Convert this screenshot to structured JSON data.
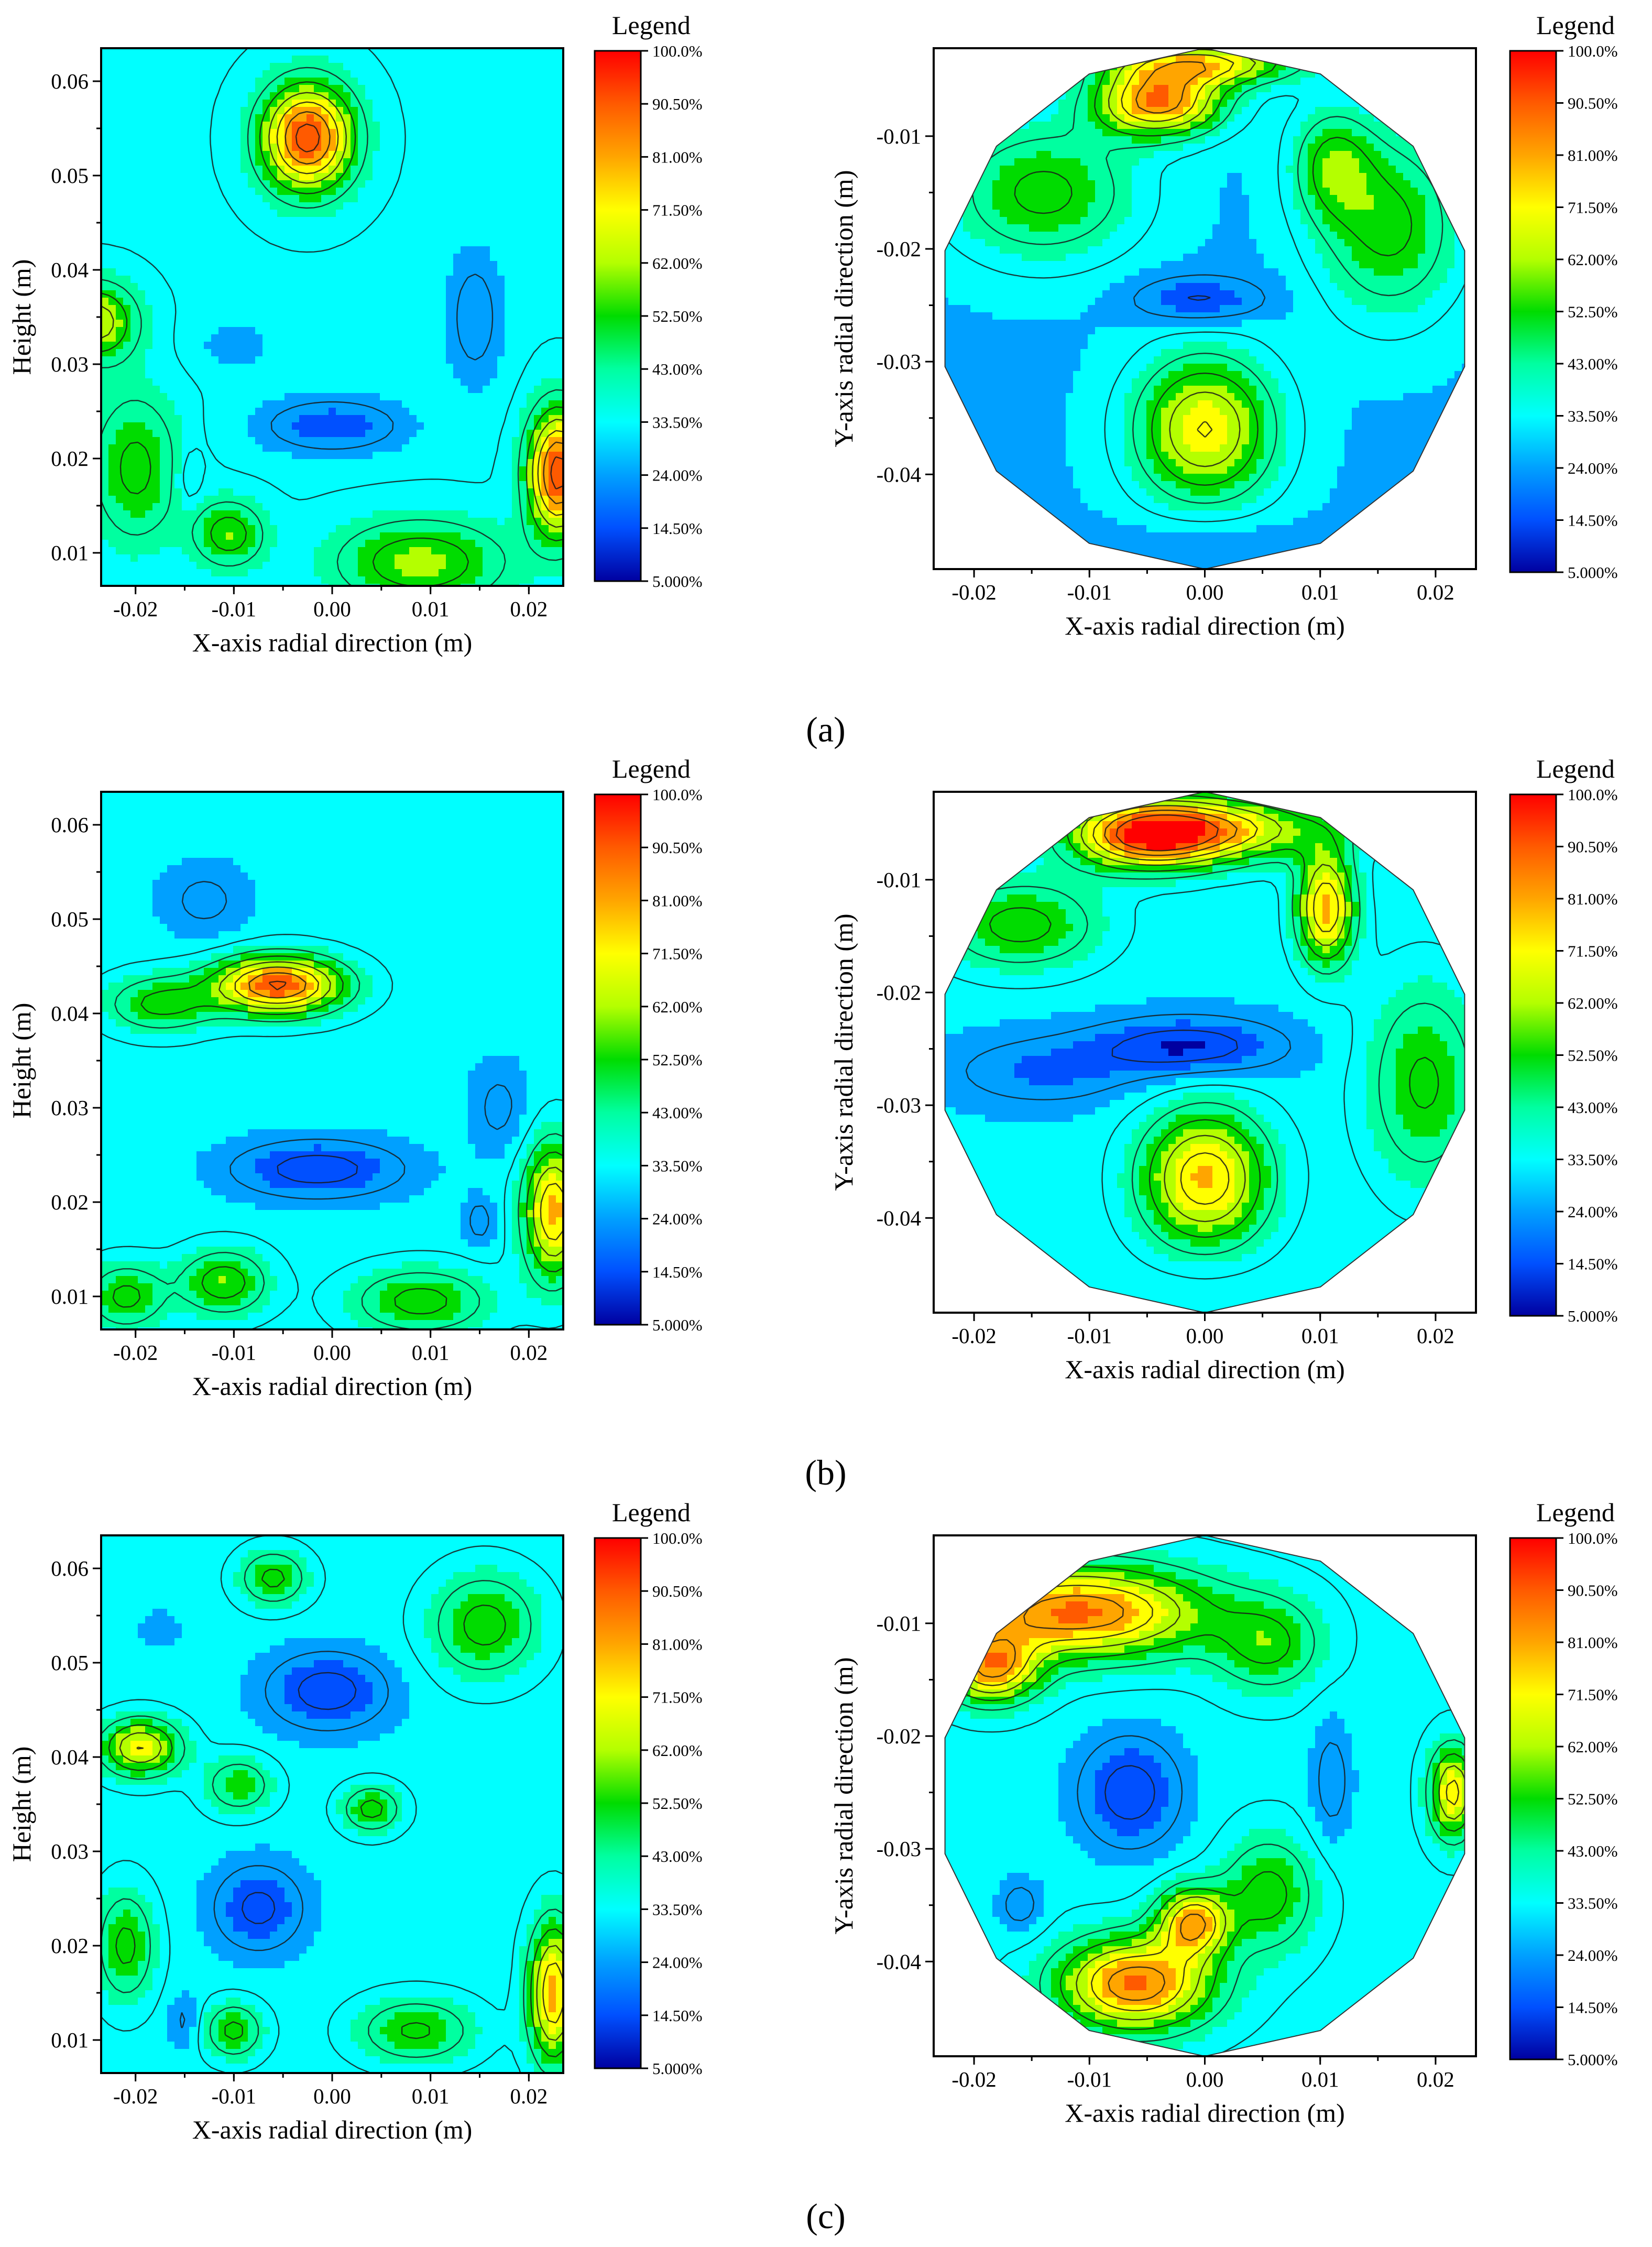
{
  "chart_data": [
    {
      "type": "heatmap",
      "id": "a-left",
      "title": "",
      "xlabel": "X-axis radial direction (m)",
      "ylabel": "Height (m)",
      "xlim": [
        -0.0235,
        0.0235
      ],
      "ylim": [
        0.0065,
        0.0635
      ],
      "xticks": [
        "-0.02",
        "-0.01",
        "0.00",
        "0.01",
        "0.02"
      ],
      "xtick_values": [
        -0.02,
        -0.01,
        0,
        0.01,
        0.02
      ],
      "yticks": [
        "0.01",
        "0.02",
        "0.03",
        "0.04",
        "0.05",
        "0.06"
      ],
      "ytick_values": [
        0.01,
        0.02,
        0.03,
        0.04,
        0.05,
        0.06
      ],
      "shape": "rect",
      "base": 33,
      "blobs": [
        {
          "x": -0.0025,
          "y": 0.054,
          "value": 95,
          "rx": 0.0045,
          "ry": 0.0055
        },
        {
          "x": -0.024,
          "y": 0.0345,
          "value": 68,
          "rx": 0.004,
          "ry": 0.004
        },
        {
          "x": 0.023,
          "y": 0.0185,
          "value": 95,
          "rx": 0.003,
          "ry": 0.0065
        },
        {
          "x": -0.02,
          "y": 0.019,
          "value": 55,
          "rx": 0.0045,
          "ry": 0.008
        },
        {
          "x": 0.009,
          "y": 0.009,
          "value": 60,
          "rx": 0.0085,
          "ry": 0.0045
        },
        {
          "x": -0.0105,
          "y": 0.012,
          "value": 58,
          "rx": 0.0035,
          "ry": 0.0035
        },
        {
          "x": 0.0,
          "y": 0.0235,
          "value": 15,
          "rx": 0.0075,
          "ry": 0.003
        },
        {
          "x": 0.0145,
          "y": 0.035,
          "value": 20,
          "rx": 0.003,
          "ry": 0.0075
        },
        {
          "x": -0.0145,
          "y": 0.018,
          "value": 24,
          "rx": 0.0012,
          "ry": 0.003
        },
        {
          "x": -0.01,
          "y": 0.032,
          "value": 26,
          "rx": 0.004,
          "ry": 0.003
        }
      ]
    },
    {
      "type": "heatmap",
      "id": "a-right",
      "title": "",
      "xlabel": "X-axis radial direction (m)",
      "ylabel": "Y-axis radial direction (m)",
      "xlim": [
        -0.0235,
        0.0235
      ],
      "ylim": [
        -0.0484,
        -0.0022
      ],
      "xticks": [
        "-0.02",
        "-0.01",
        "0.00",
        "0.01",
        "0.02"
      ],
      "xtick_values": [
        -0.02,
        -0.01,
        0,
        0.01,
        0.02
      ],
      "yticks": [
        "-0.01",
        "-0.02",
        "-0.03",
        "-0.04"
      ],
      "ytick_values": [
        -0.01,
        -0.02,
        -0.03,
        -0.04
      ],
      "shape": "circle",
      "center": [
        0,
        -0.0253
      ],
      "radius": 0.0231,
      "base": 28,
      "blobs": [
        {
          "x": -0.004,
          "y": -0.007,
          "value": 85,
          "rx": 0.0055,
          "ry": 0.003
        },
        {
          "x": 0.0,
          "y": -0.0035,
          "value": 72,
          "rx": 0.008,
          "ry": 0.002
        },
        {
          "x": 0.011,
          "y": -0.0125,
          "value": 52,
          "rx": 0.0035,
          "ry": 0.005
        },
        {
          "x": -0.014,
          "y": -0.015,
          "value": 55,
          "rx": 0.008,
          "ry": 0.006
        },
        {
          "x": 0.016,
          "y": -0.018,
          "value": 55,
          "rx": 0.006,
          "ry": 0.008
        },
        {
          "x": 0.0,
          "y": -0.036,
          "value": 72,
          "rx": 0.006,
          "ry": 0.0065
        },
        {
          "x": -0.0005,
          "y": -0.0245,
          "value": 12,
          "rx": 0.0055,
          "ry": 0.002
        },
        {
          "x": 0.0,
          "y": -0.046,
          "value": 22,
          "rx": 0.007,
          "ry": 0.0025
        }
      ]
    },
    {
      "type": "heatmap",
      "id": "b-left",
      "title": "",
      "xlabel": "X-axis radial direction (m)",
      "ylabel": "Height (m)",
      "xlim": [
        -0.0235,
        0.0235
      ],
      "ylim": [
        0.0065,
        0.0635
      ],
      "xticks": [
        "-0.02",
        "-0.01",
        "0.00",
        "0.01",
        "0.02"
      ],
      "xtick_values": [
        -0.02,
        -0.01,
        0,
        0.01,
        0.02
      ],
      "yticks": [
        "0.01",
        "0.02",
        "0.03",
        "0.04",
        "0.05",
        "0.06"
      ],
      "ytick_values": [
        0.01,
        0.02,
        0.03,
        0.04,
        0.05,
        0.06
      ],
      "shape": "rect",
      "base": 31,
      "blobs": [
        {
          "x": -0.0055,
          "y": 0.043,
          "value": 92,
          "rx": 0.0065,
          "ry": 0.003
        },
        {
          "x": -0.0175,
          "y": 0.041,
          "value": 55,
          "rx": 0.0055,
          "ry": 0.003
        },
        {
          "x": 0.0225,
          "y": 0.019,
          "value": 80,
          "rx": 0.003,
          "ry": 0.007
        },
        {
          "x": -0.011,
          "y": 0.0115,
          "value": 58,
          "rx": 0.0045,
          "ry": 0.0035
        },
        {
          "x": 0.009,
          "y": 0.0095,
          "value": 56,
          "rx": 0.007,
          "ry": 0.0035
        },
        {
          "x": -0.021,
          "y": 0.01,
          "value": 55,
          "rx": 0.004,
          "ry": 0.0035
        },
        {
          "x": -0.0015,
          "y": 0.0235,
          "value": 10,
          "rx": 0.0085,
          "ry": 0.003
        },
        {
          "x": -0.013,
          "y": 0.052,
          "value": 22,
          "rx": 0.0045,
          "ry": 0.004
        },
        {
          "x": 0.017,
          "y": 0.03,
          "value": 22,
          "rx": 0.003,
          "ry": 0.005
        },
        {
          "x": 0.015,
          "y": 0.018,
          "value": 20,
          "rx": 0.0015,
          "ry": 0.0025
        }
      ]
    },
    {
      "type": "heatmap",
      "id": "b-right",
      "title": "",
      "xlabel": "X-axis radial direction (m)",
      "ylabel": "Y-axis radial direction (m)",
      "xlim": [
        -0.0235,
        0.0235
      ],
      "ylim": [
        -0.0484,
        -0.0022
      ],
      "xticks": [
        "-0.02",
        "-0.01",
        "0.00",
        "0.01",
        "0.02"
      ],
      "xtick_values": [
        -0.02,
        -0.01,
        0,
        0.01,
        0.02
      ],
      "yticks": [
        "-0.01",
        "-0.02",
        "-0.03",
        "-0.04"
      ],
      "ytick_values": [
        -0.01,
        -0.02,
        -0.03,
        -0.04
      ],
      "shape": "circle",
      "center": [
        0,
        -0.0253
      ],
      "radius": 0.0231,
      "base": 30,
      "blobs": [
        {
          "x": -0.005,
          "y": -0.006,
          "value": 88,
          "rx": 0.0065,
          "ry": 0.003
        },
        {
          "x": 0.0105,
          "y": -0.0125,
          "value": 80,
          "rx": 0.0025,
          "ry": 0.005
        },
        {
          "x": 0.002,
          "y": -0.0055,
          "value": 68,
          "rx": 0.009,
          "ry": 0.0028
        },
        {
          "x": -0.016,
          "y": -0.014,
          "value": 56,
          "rx": 0.007,
          "ry": 0.004
        },
        {
          "x": 0.0,
          "y": -0.0365,
          "value": 78,
          "rx": 0.0055,
          "ry": 0.006
        },
        {
          "x": 0.019,
          "y": -0.028,
          "value": 54,
          "rx": 0.005,
          "ry": 0.009
        },
        {
          "x": -0.0015,
          "y": -0.0248,
          "value": 8,
          "rx": 0.008,
          "ry": 0.0025
        },
        {
          "x": -0.014,
          "y": -0.027,
          "value": 18,
          "rx": 0.008,
          "ry": 0.003
        },
        {
          "x": 0.0,
          "y": -0.046,
          "value": 28,
          "rx": 0.007,
          "ry": 0.0025
        }
      ]
    },
    {
      "type": "heatmap",
      "id": "c-left",
      "title": "",
      "xlabel": "X-axis radial direction (m)",
      "ylabel": "Height (m)",
      "xlim": [
        -0.0235,
        0.0235
      ],
      "ylim": [
        0.0065,
        0.0635
      ],
      "xticks": [
        "-0.02",
        "-0.01",
        "0.00",
        "0.01",
        "0.02"
      ],
      "xtick_values": [
        -0.02,
        -0.01,
        0,
        0.01,
        0.02
      ],
      "yticks": [
        "0.01",
        "0.02",
        "0.03",
        "0.04",
        "0.05",
        "0.06"
      ],
      "ytick_values": [
        0.01,
        0.02,
        0.03,
        0.04,
        0.05,
        0.06
      ],
      "shape": "rect",
      "base": 31,
      "blobs": [
        {
          "x": -0.0195,
          "y": 0.041,
          "value": 72,
          "rx": 0.004,
          "ry": 0.003
        },
        {
          "x": 0.0225,
          "y": 0.015,
          "value": 80,
          "rx": 0.0025,
          "ry": 0.0075
        },
        {
          "x": -0.006,
          "y": 0.059,
          "value": 55,
          "rx": 0.0035,
          "ry": 0.003
        },
        {
          "x": 0.0155,
          "y": 0.054,
          "value": 56,
          "rx": 0.0055,
          "ry": 0.0055
        },
        {
          "x": -0.021,
          "y": 0.02,
          "value": 55,
          "rx": 0.003,
          "ry": 0.006
        },
        {
          "x": 0.004,
          "y": 0.0345,
          "value": 56,
          "rx": 0.003,
          "ry": 0.0025
        },
        {
          "x": -0.0095,
          "y": 0.037,
          "value": 52,
          "rx": 0.0035,
          "ry": 0.003
        },
        {
          "x": 0.0085,
          "y": 0.011,
          "value": 54,
          "rx": 0.006,
          "ry": 0.0035
        },
        {
          "x": -0.01,
          "y": 0.011,
          "value": 55,
          "rx": 0.003,
          "ry": 0.003
        },
        {
          "x": -0.0005,
          "y": 0.047,
          "value": 10,
          "rx": 0.006,
          "ry": 0.004
        },
        {
          "x": -0.0075,
          "y": 0.024,
          "value": 12,
          "rx": 0.0045,
          "ry": 0.0045
        },
        {
          "x": -0.0175,
          "y": 0.0535,
          "value": 25,
          "rx": 0.002,
          "ry": 0.002
        },
        {
          "x": -0.015,
          "y": 0.012,
          "value": 22,
          "rx": 0.0015,
          "ry": 0.003
        }
      ]
    },
    {
      "type": "heatmap",
      "id": "c-right",
      "title": "",
      "xlabel": "X-axis radial direction (m)",
      "ylabel": "Y-axis radial direction (m)",
      "xlim": [
        -0.0235,
        0.0235
      ],
      "ylim": [
        -0.0484,
        -0.0022
      ],
      "xticks": [
        "-0.02",
        "-0.01",
        "0.00",
        "0.01",
        "0.02"
      ],
      "xtick_values": [
        -0.02,
        -0.01,
        0,
        0.01,
        0.02
      ],
      "yticks": [
        "-0.01",
        "-0.02",
        "-0.03",
        "-0.04"
      ],
      "ytick_values": [
        -0.01,
        -0.02,
        -0.03,
        -0.04
      ],
      "shape": "circle",
      "center": [
        0,
        -0.0253
      ],
      "radius": 0.0231,
      "base": 32,
      "blobs": [
        {
          "x": -0.011,
          "y": -0.009,
          "value": 88,
          "rx": 0.011,
          "ry": 0.004
        },
        {
          "x": -0.0185,
          "y": -0.014,
          "value": 80,
          "rx": 0.004,
          "ry": 0.003
        },
        {
          "x": -0.006,
          "y": -0.042,
          "value": 88,
          "rx": 0.0065,
          "ry": 0.004
        },
        {
          "x": -0.001,
          "y": -0.0365,
          "value": 80,
          "rx": 0.003,
          "ry": 0.003
        },
        {
          "x": 0.0215,
          "y": -0.025,
          "value": 75,
          "rx": 0.002,
          "ry": 0.004
        },
        {
          "x": 0.0055,
          "y": -0.034,
          "value": 56,
          "rx": 0.004,
          "ry": 0.005
        },
        {
          "x": 0.0055,
          "y": -0.012,
          "value": 54,
          "rx": 0.0045,
          "ry": 0.004
        },
        {
          "x": -0.0065,
          "y": -0.025,
          "value": 10,
          "rx": 0.0045,
          "ry": 0.005
        },
        {
          "x": 0.011,
          "y": -0.024,
          "value": 20,
          "rx": 0.0018,
          "ry": 0.0055
        },
        {
          "x": -0.016,
          "y": -0.035,
          "value": 20,
          "rx": 0.002,
          "ry": 0.0025
        }
      ]
    }
  ],
  "legend": {
    "title": "Legend",
    "labels": [
      "100.0%",
      "90.50%",
      "81.00%",
      "71.50%",
      "62.00%",
      "52.50%",
      "43.00%",
      "33.50%",
      "24.00%",
      "14.50%",
      "5.000%"
    ],
    "values": [
      100,
      90.5,
      81,
      71.5,
      62,
      52.5,
      43,
      33.5,
      24,
      14.5,
      5
    ],
    "colors": [
      "#ff0000",
      "#ff5a00",
      "#ffa500",
      "#ffff00",
      "#b4ff00",
      "#00dc00",
      "#00ffa0",
      "#00ffff",
      "#00a0ff",
      "#0050ff",
      "#0000a0"
    ]
  },
  "panel_labels": {
    "a": "(a)",
    "b": "(b)",
    "c": "(c)"
  }
}
